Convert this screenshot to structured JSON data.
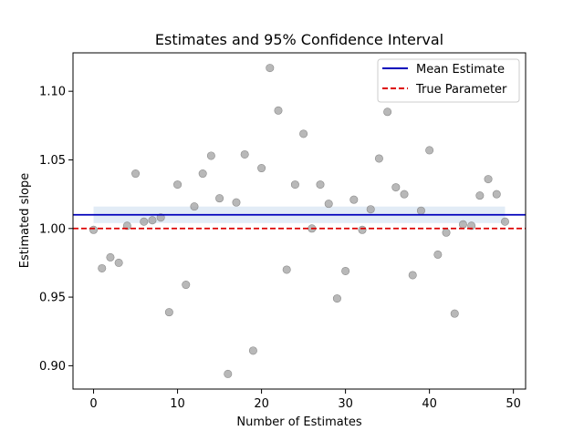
{
  "chart_data": {
    "type": "scatter",
    "title": "Estimates and 95% Confidence Interval",
    "xlabel": "Number of Estimates",
    "ylabel": "Estimated slope",
    "xlim": [
      -2.45,
      51.45
    ],
    "ylim": [
      0.883,
      1.128
    ],
    "x_ticks": [
      0,
      10,
      20,
      30,
      40,
      50
    ],
    "x_tick_labels": [
      "0",
      "10",
      "20",
      "30",
      "40",
      "50"
    ],
    "y_ticks": [
      0.9,
      0.95,
      1.0,
      1.05,
      1.1
    ],
    "y_tick_labels": [
      "0.90",
      "0.95",
      "1.00",
      "1.05",
      "1.10"
    ],
    "grid": false,
    "legend_position": "top-right",
    "series": [
      {
        "kind": "points",
        "color": "#a0a0a0",
        "x": [
          0,
          1,
          2,
          3,
          4,
          5,
          6,
          7,
          8,
          9,
          10,
          11,
          12,
          13,
          14,
          15,
          16,
          17,
          18,
          19,
          20,
          21,
          22,
          23,
          24,
          25,
          26,
          27,
          28,
          29,
          30,
          31,
          32,
          33,
          34,
          35,
          36,
          37,
          38,
          39,
          40,
          41,
          42,
          43,
          44,
          45,
          46,
          47,
          48,
          49
        ],
        "y": [
          0.999,
          0.971,
          0.979,
          0.975,
          1.002,
          1.04,
          1.005,
          1.006,
          1.008,
          0.939,
          1.032,
          0.959,
          1.016,
          1.04,
          1.053,
          1.022,
          0.894,
          1.019,
          1.054,
          0.911,
          1.044,
          1.117,
          1.086,
          0.97,
          1.032,
          1.069,
          1.0,
          1.032,
          1.018,
          0.949,
          0.969,
          1.021,
          0.999,
          1.014,
          1.051,
          1.085,
          1.03,
          1.025,
          0.966,
          1.013,
          1.057,
          0.981,
          0.997,
          0.938,
          1.003,
          1.002,
          1.024,
          1.036,
          1.025,
          1.005
        ]
      },
      {
        "kind": "hline",
        "name": "Mean Estimate",
        "value": 1.01,
        "color": "#0000bb",
        "style": "solid"
      },
      {
        "kind": "hline",
        "name": "True Parameter",
        "value": 1.0,
        "color": "#dd0000",
        "style": "dashed"
      },
      {
        "kind": "band",
        "x_range": [
          0,
          49
        ],
        "y_range": [
          1.004,
          1.016
        ],
        "color": "#cfe0f0"
      }
    ]
  }
}
